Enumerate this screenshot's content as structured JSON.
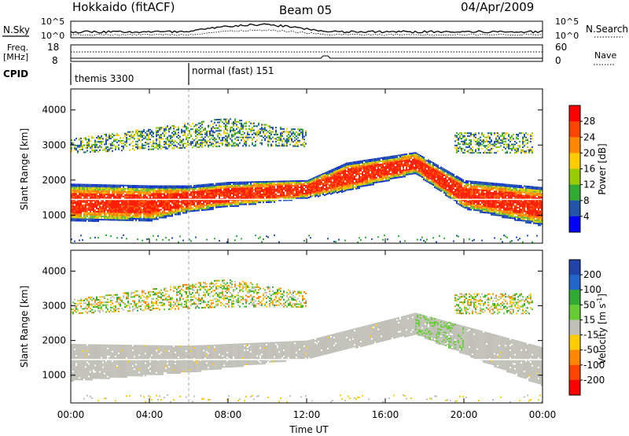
{
  "header": {
    "station": "Hokkaido (fitACF)",
    "beam": "Beam 05",
    "date": "04/Apr/2009"
  },
  "nsky_panel": {
    "left_label": "N.Sky",
    "right_label": "N.Search",
    "left_ticks": [
      "10^5",
      "10^0"
    ],
    "right_ticks": [
      "10^5",
      "10^0"
    ]
  },
  "freq_panel": {
    "left_label_1": "Freq.",
    "left_label_2": "[MHz]",
    "right_label": "Nave",
    "left_ticks": [
      "18",
      "8"
    ],
    "right_ticks": [
      "60",
      "0"
    ]
  },
  "cpid_panel": {
    "label": "CPID",
    "modes": [
      {
        "name": "themis 3300",
        "start_hour": 0
      },
      {
        "name": "normal (fast) 151",
        "start_hour": 6
      }
    ]
  },
  "x_axis": {
    "label": "Time UT",
    "ticks": [
      "00:00",
      "04:00",
      "08:00",
      "12:00",
      "16:00",
      "20:00",
      "00:00"
    ]
  },
  "power_colorbar": {
    "label": "Power [dB]",
    "ticks": [
      "28",
      "24",
      "20",
      "16",
      "12",
      "8",
      "4"
    ],
    "colors": [
      "#ff0000",
      "#ff4400",
      "#ff8800",
      "#ffcc00",
      "#99cc00",
      "#33aa33",
      "#2255aa",
      "#0000ff"
    ]
  },
  "velocity_colorbar": {
    "label": "Velocity [m s",
    "label_sup": "-1",
    "label_end": "]",
    "ticks": [
      "200",
      "100",
      "50",
      "15",
      "-15",
      "-50",
      "-100",
      "-200"
    ],
    "colors": [
      "#2244aa",
      "#2266cc",
      "#33aa33",
      "#66cc33",
      "#c0c0b8",
      "#ffcc00",
      "#ff8800",
      "#ff4400",
      "#ff0000"
    ]
  },
  "chart_data": [
    {
      "type": "heatmap",
      "title": "",
      "xlabel": "Time UT",
      "ylabel": "Slant Range [km]",
      "ylim": [
        200,
        4600
      ],
      "xlim_hours": [
        0,
        24
      ],
      "y_ticks": [
        1000,
        2000,
        3000,
        4000
      ],
      "colorbar": "Power [dB]",
      "colorbar_range": [
        0,
        30
      ],
      "main_echo_band": [
        {
          "hour": 0,
          "range_low": 850,
          "range_high": 1900
        },
        {
          "hour": 4,
          "range_low": 850,
          "range_high": 1850
        },
        {
          "hour": 6,
          "range_low": 1100,
          "range_high": 1850
        },
        {
          "hour": 8,
          "range_low": 1250,
          "range_high": 1950
        },
        {
          "hour": 12,
          "range_low": 1500,
          "range_high": 2000
        },
        {
          "hour": 14,
          "range_low": 1700,
          "range_high": 2500
        },
        {
          "hour": 17.5,
          "range_low": 2200,
          "range_high": 2800
        },
        {
          "hour": 20,
          "range_low": 1200,
          "range_high": 2000
        },
        {
          "hour": 24,
          "range_low": 700,
          "range_high": 1800
        }
      ],
      "upper_echo_band": [
        {
          "hour": 0,
          "range_low": 2800,
          "range_high": 3200
        },
        {
          "hour": 8,
          "range_low": 3000,
          "range_high": 3800
        },
        {
          "hour": 11,
          "range_low": 3000,
          "range_high": 3500
        },
        {
          "hour": 20,
          "range_low": 2800,
          "range_high": 3400
        }
      ]
    },
    {
      "type": "heatmap",
      "title": "",
      "xlabel": "Time UT",
      "ylabel": "Slant Range [km]",
      "ylim": [
        200,
        4600
      ],
      "xlim_hours": [
        0,
        24
      ],
      "y_ticks": [
        1000,
        2000,
        3000,
        4000
      ],
      "colorbar": "Velocity [m s-1]",
      "colorbar_range": [
        -200,
        200
      ],
      "ground_scatter_band": [
        {
          "hour": 0,
          "range_low": 850,
          "range_high": 1900
        },
        {
          "hour": 6,
          "range_low": 1100,
          "range_high": 1850
        },
        {
          "hour": 12,
          "range_low": 1500,
          "range_high": 2000
        },
        {
          "hour": 17.5,
          "range_low": 2200,
          "range_high": 2800
        },
        {
          "hour": 24,
          "range_low": 700,
          "range_high": 1800
        }
      ]
    }
  ]
}
